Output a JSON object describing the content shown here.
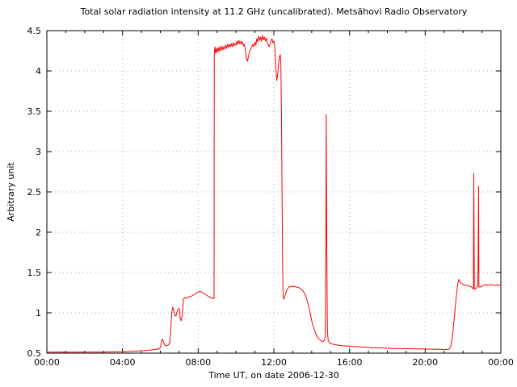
{
  "chart_data": {
    "type": "line",
    "title": "Total solar radiation intensity at 11.2 GHz (uncalibrated). Metsähovi Radio Observatory",
    "xlabel": "Time UT, on date 2006-12-30",
    "ylabel": "Arbitrary unit",
    "xlim": [
      0,
      24
    ],
    "ylim": [
      0.5,
      4.5
    ],
    "x_ticks": {
      "hours": [
        0,
        4,
        8,
        12,
        16,
        20,
        24
      ],
      "labels": [
        "00:00",
        "04:00",
        "08:00",
        "12:00",
        "16:00",
        "20:00",
        "00:00"
      ]
    },
    "x_minor_tick_every_hours": 1,
    "y_ticks": {
      "values": [
        0.5,
        1,
        1.5,
        2,
        2.5,
        3,
        3.5,
        4,
        4.5
      ],
      "labels": [
        "0.5",
        "1",
        "1.5",
        "2",
        "2.5",
        "3",
        "3.5",
        "4",
        "4.5"
      ]
    },
    "grid": {
      "show": true,
      "style": "dotted",
      "color": "#b0b0b0"
    },
    "legend": "none",
    "colors": {
      "line": "#ff0000",
      "axis": "#000000",
      "text": "#000000",
      "background": "#ffffff"
    },
    "series": [
      {
        "name": "total-solar-radiation-11.2GHz",
        "points": [
          [
            0,
            0.513
          ],
          [
            0.4,
            0.512
          ],
          [
            0.8,
            0.514
          ],
          [
            1.2,
            0.512
          ],
          [
            1.6,
            0.513
          ],
          [
            2,
            0.513
          ],
          [
            2.4,
            0.514
          ],
          [
            2.8,
            0.513
          ],
          [
            3.2,
            0.515
          ],
          [
            3.6,
            0.516
          ],
          [
            4,
            0.518
          ],
          [
            4.4,
            0.521
          ],
          [
            4.8,
            0.526
          ],
          [
            5.2,
            0.532
          ],
          [
            5.6,
            0.541
          ],
          [
            5.9,
            0.553
          ],
          [
            6,
            0.568
          ],
          [
            6.05,
            0.63
          ],
          [
            6.1,
            0.675
          ],
          [
            6.15,
            0.65
          ],
          [
            6.22,
            0.605
          ],
          [
            6.3,
            0.59
          ],
          [
            6.4,
            0.598
          ],
          [
            6.5,
            0.625
          ],
          [
            6.55,
            0.78
          ],
          [
            6.6,
            1
          ],
          [
            6.65,
            1.07
          ],
          [
            6.7,
            1.04
          ],
          [
            6.76,
            0.97
          ],
          [
            6.82,
            0.96
          ],
          [
            6.88,
            1.01
          ],
          [
            6.94,
            1.05
          ],
          [
            7,
            1.05
          ],
          [
            7.05,
            0.93
          ],
          [
            7.1,
            0.9
          ],
          [
            7.16,
            0.97
          ],
          [
            7.22,
            1.17
          ],
          [
            7.3,
            1.19
          ],
          [
            7.4,
            1.18
          ],
          [
            7.5,
            1.2
          ],
          [
            7.6,
            1.2
          ],
          [
            7.7,
            1.215
          ],
          [
            7.8,
            1.23
          ],
          [
            7.9,
            1.245
          ],
          [
            8,
            1.26
          ],
          [
            8.1,
            1.265
          ],
          [
            8.2,
            1.255
          ],
          [
            8.3,
            1.24
          ],
          [
            8.4,
            1.225
          ],
          [
            8.5,
            1.21
          ],
          [
            8.6,
            1.195
          ],
          [
            8.7,
            1.185
          ],
          [
            8.8,
            1.175
          ],
          [
            8.84,
            1.18
          ],
          [
            8.85,
            4.18
          ],
          [
            8.88,
            4.3
          ],
          [
            8.92,
            4.22
          ],
          [
            8.96,
            4.28
          ],
          [
            9,
            4.23
          ],
          [
            9.05,
            4.29
          ],
          [
            9.1,
            4.24
          ],
          [
            9.15,
            4.3
          ],
          [
            9.2,
            4.25
          ],
          [
            9.25,
            4.31
          ],
          [
            9.3,
            4.26
          ],
          [
            9.35,
            4.3
          ],
          [
            9.4,
            4.27
          ],
          [
            9.45,
            4.32
          ],
          [
            9.5,
            4.28
          ],
          [
            9.55,
            4.33
          ],
          [
            9.6,
            4.29
          ],
          [
            9.65,
            4.33
          ],
          [
            9.7,
            4.3
          ],
          [
            9.75,
            4.34
          ],
          [
            9.8,
            4.3
          ],
          [
            9.85,
            4.35
          ],
          [
            9.9,
            4.31
          ],
          [
            9.95,
            4.34
          ],
          [
            10,
            4.32
          ],
          [
            10.05,
            4.37
          ],
          [
            10.1,
            4.33
          ],
          [
            10.15,
            4.38
          ],
          [
            10.2,
            4.34
          ],
          [
            10.25,
            4.37
          ],
          [
            10.3,
            4.33
          ],
          [
            10.35,
            4.36
          ],
          [
            10.4,
            4.31
          ],
          [
            10.45,
            4.33
          ],
          [
            10.5,
            4.25
          ],
          [
            10.55,
            4.16
          ],
          [
            10.6,
            4.12
          ],
          [
            10.65,
            4.17
          ],
          [
            10.7,
            4.22
          ],
          [
            10.75,
            4.26
          ],
          [
            10.8,
            4.28
          ],
          [
            10.85,
            4.31
          ],
          [
            10.9,
            4.33
          ],
          [
            10.95,
            4.3
          ],
          [
            11,
            4.36
          ],
          [
            11.05,
            4.32
          ],
          [
            11.1,
            4.4
          ],
          [
            11.15,
            4.36
          ],
          [
            11.2,
            4.43
          ],
          [
            11.25,
            4.38
          ],
          [
            11.3,
            4.42
          ],
          [
            11.35,
            4.37
          ],
          [
            11.4,
            4.44
          ],
          [
            11.45,
            4.39
          ],
          [
            11.5,
            4.42
          ],
          [
            11.55,
            4.37
          ],
          [
            11.6,
            4.41
          ],
          [
            11.65,
            4.35
          ],
          [
            11.7,
            4.33
          ],
          [
            11.75,
            4.3
          ],
          [
            11.8,
            4.33
          ],
          [
            11.85,
            4.37
          ],
          [
            11.9,
            4.4
          ],
          [
            11.95,
            4.35
          ],
          [
            12,
            4.37
          ],
          [
            12.05,
            4.3
          ],
          [
            12.1,
            4.05
          ],
          [
            12.15,
            3.88
          ],
          [
            12.2,
            3.95
          ],
          [
            12.25,
            4.08
          ],
          [
            12.3,
            4.18
          ],
          [
            12.34,
            4.2
          ],
          [
            12.37,
            4.1
          ],
          [
            12.4,
            3.5
          ],
          [
            12.43,
            2.6
          ],
          [
            12.46,
            1.7
          ],
          [
            12.49,
            1.2
          ],
          [
            12.53,
            1.17
          ],
          [
            12.6,
            1.22
          ],
          [
            12.7,
            1.29
          ],
          [
            12.8,
            1.32
          ],
          [
            12.9,
            1.33
          ],
          [
            13,
            1.325
          ],
          [
            13.1,
            1.33
          ],
          [
            13.2,
            1.32
          ],
          [
            13.3,
            1.315
          ],
          [
            13.4,
            1.3
          ],
          [
            13.5,
            1.285
          ],
          [
            13.6,
            1.25
          ],
          [
            13.7,
            1.2
          ],
          [
            13.8,
            1.12
          ],
          [
            13.9,
            1.02
          ],
          [
            14,
            0.9
          ],
          [
            14.1,
            0.82
          ],
          [
            14.2,
            0.75
          ],
          [
            14.3,
            0.7
          ],
          [
            14.4,
            0.67
          ],
          [
            14.5,
            0.655
          ],
          [
            14.6,
            0.64
          ],
          [
            14.68,
            0.665
          ],
          [
            14.72,
            0.7
          ],
          [
            14.75,
            1.9
          ],
          [
            14.77,
            3.46
          ],
          [
            14.8,
            1.8
          ],
          [
            14.83,
            0.78
          ],
          [
            14.87,
            0.66
          ],
          [
            14.95,
            0.625
          ],
          [
            15.1,
            0.612
          ],
          [
            15.3,
            0.602
          ],
          [
            15.6,
            0.593
          ],
          [
            16,
            0.586
          ],
          [
            16.4,
            0.58
          ],
          [
            16.8,
            0.574
          ],
          [
            17.2,
            0.569
          ],
          [
            17.6,
            0.565
          ],
          [
            18,
            0.561
          ],
          [
            18.4,
            0.558
          ],
          [
            18.8,
            0.556
          ],
          [
            19.2,
            0.554
          ],
          [
            19.6,
            0.552
          ],
          [
            20,
            0.551
          ],
          [
            20.4,
            0.549
          ],
          [
            20.8,
            0.547
          ],
          [
            21.1,
            0.545
          ],
          [
            21.25,
            0.547
          ],
          [
            21.35,
            0.58
          ],
          [
            21.45,
            0.73
          ],
          [
            21.55,
            0.97
          ],
          [
            21.65,
            1.22
          ],
          [
            21.72,
            1.36
          ],
          [
            21.78,
            1.415
          ],
          [
            21.85,
            1.38
          ],
          [
            21.95,
            1.36
          ],
          [
            22.05,
            1.35
          ],
          [
            22.15,
            1.34
          ],
          [
            22.25,
            1.335
          ],
          [
            22.35,
            1.33
          ],
          [
            22.45,
            1.32
          ],
          [
            22.5,
            1.305
          ],
          [
            22.55,
            1.3
          ],
          [
            22.57,
            2.73
          ],
          [
            22.6,
            1.29
          ],
          [
            22.66,
            1.3
          ],
          [
            22.72,
            1.31
          ],
          [
            22.78,
            1.33
          ],
          [
            22.8,
            1.7
          ],
          [
            22.82,
            2.57
          ],
          [
            22.84,
            1.32
          ],
          [
            22.92,
            1.32
          ],
          [
            23,
            1.33
          ],
          [
            23.1,
            1.345
          ],
          [
            23.2,
            1.35
          ],
          [
            23.3,
            1.34
          ],
          [
            23.4,
            1.347
          ],
          [
            23.5,
            1.35
          ],
          [
            23.6,
            1.344
          ],
          [
            23.7,
            1.34
          ],
          [
            23.8,
            1.346
          ],
          [
            23.9,
            1.34
          ],
          [
            24,
            1.345
          ]
        ]
      }
    ]
  }
}
